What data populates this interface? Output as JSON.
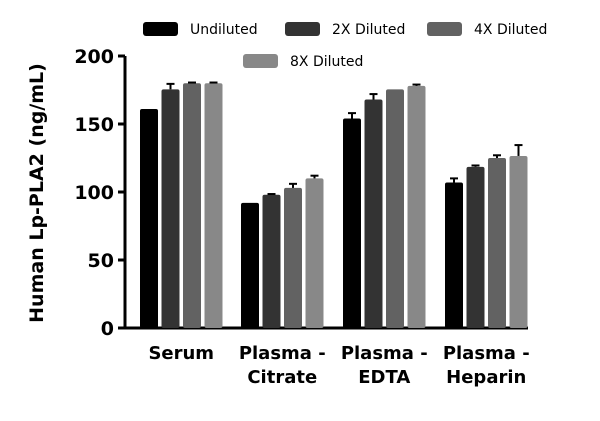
{
  "chart_data": {
    "type": "bar",
    "ylabel": "Human Lp-PLA2 (ng/mL)",
    "ylim": [
      0,
      200
    ],
    "yticks": [
      "0",
      "50",
      "100",
      "150",
      "200"
    ],
    "categories": [
      [
        "Serum"
      ],
      [
        "Plasma -",
        "Citrate"
      ],
      [
        "Plasma -",
        "EDTA"
      ],
      [
        "Plasma -",
        "Heparin"
      ]
    ],
    "legend_position": "top",
    "grid": false,
    "series": [
      {
        "name": "Undiluted",
        "color": "#000000",
        "values": [
          161,
          92,
          154,
          107
        ],
        "errors": [
          0,
          0,
          4,
          3
        ]
      },
      {
        "name": "2X Diluted",
        "color": "#333333",
        "values": [
          175.5,
          98,
          168,
          118.5
        ],
        "errors": [
          4,
          0.5,
          4,
          1
        ]
      },
      {
        "name": "4X Diluted",
        "color": "#626262",
        "values": [
          180,
          103,
          175.5,
          125
        ],
        "errors": [
          0.5,
          3,
          0,
          2
        ]
      },
      {
        "name": "8X Diluted",
        "color": "#888888",
        "values": [
          180,
          110,
          178,
          126.5
        ],
        "errors": [
          0.5,
          2,
          1,
          8
        ]
      }
    ]
  }
}
